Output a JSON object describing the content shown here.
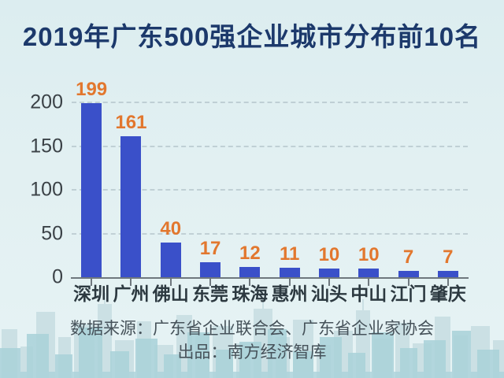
{
  "chart_data": {
    "type": "bar",
    "title": "2019年广东500强企业城市分布前10名",
    "categories": [
      "深圳",
      "广州",
      "佛山",
      "东莞",
      "珠海",
      "惠州",
      "汕头",
      "中山",
      "江门",
      "肇庆"
    ],
    "values": [
      199,
      161,
      40,
      17,
      12,
      11,
      10,
      10,
      7,
      7
    ],
    "yticks": [
      0,
      50,
      100,
      150,
      200
    ],
    "ylim": [
      0,
      200
    ],
    "xlabel": "",
    "ylabel": "",
    "grid": "horizontal-dashed",
    "legend": "none",
    "value_labels_shown": true
  },
  "footer": {
    "source_line": "数据来源：广东省企业联合会、广东省企业家协会",
    "producer_line": "出品：南方经济智库"
  },
  "decor": {
    "skyline": "city-skyline-silhouette"
  },
  "colors": {
    "background": "#e2f0f2",
    "title": "#1c396b",
    "bar": "#3a50c9",
    "value_label": "#e2772e",
    "axis": "#6f787e",
    "tick_label": "#3b4247",
    "category_label": "#2c3940",
    "footer_text": "#46525a",
    "skyline_back": "#cbe0e4",
    "skyline_front": "#a9d2d9"
  }
}
